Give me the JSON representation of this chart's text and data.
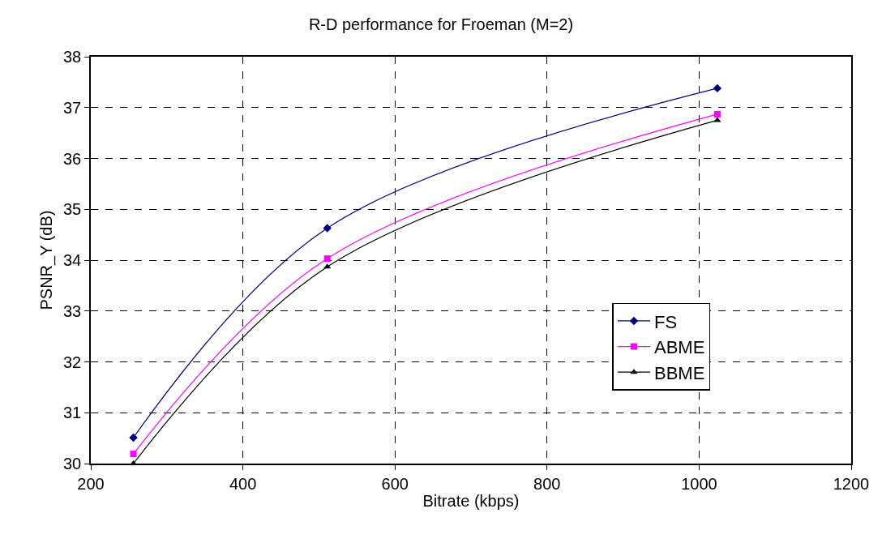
{
  "chart_data": {
    "type": "line",
    "title": "R-D performance for Froeman (M=2)",
    "xlabel": "Bitrate (kbps)",
    "ylabel": "PSNR_Y (dB)",
    "x": [
      256,
      511,
      1024
    ],
    "series": [
      {
        "name": "FS",
        "color": "#000080",
        "marker": "diamond",
        "values": [
          30.51,
          34.63,
          37.38
        ]
      },
      {
        "name": "ABME",
        "color": "#ff00ff",
        "marker": "square",
        "values": [
          30.19,
          34.03,
          36.87
        ]
      },
      {
        "name": "BBME",
        "color": "#000000",
        "marker": "triangle",
        "values": [
          30.0,
          33.87,
          36.75
        ]
      }
    ],
    "xlim": [
      200,
      1200
    ],
    "xticks": [
      200,
      400,
      600,
      800,
      1000,
      1200
    ],
    "ylim": [
      30,
      38
    ],
    "yticks": [
      30,
      31,
      32,
      33,
      34,
      35,
      36,
      37,
      38
    ],
    "grid": true,
    "legend": "bottom right",
    "line_style": "solid"
  }
}
